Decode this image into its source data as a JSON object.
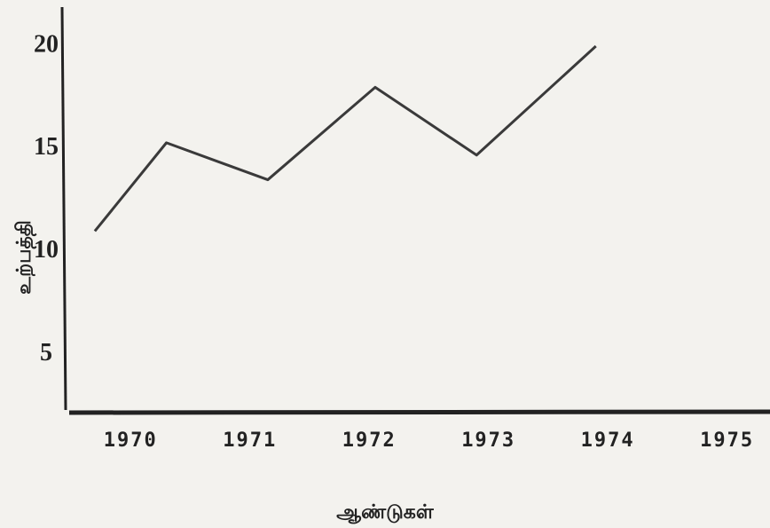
{
  "chart_data": {
    "type": "line",
    "x": [
      1969.7,
      1970.3,
      1971.15,
      1972.05,
      1972.9,
      1973.9
    ],
    "series": [
      {
        "name": null,
        "color": "#3a3a3a",
        "values": [
          11,
          15.3,
          13.5,
          18,
          14.7,
          20
        ]
      }
    ],
    "xlim": [
      1969.5,
      1975.3
    ],
    "xticks": [
      1970,
      1971,
      1972,
      1973,
      1974,
      1975
    ],
    "ylim": [
      2.3,
      21.9
    ],
    "yticks": [
      5,
      10,
      15,
      20
    ],
    "xlabel": "ஆண்டுகள்",
    "ylabel": "உற்பத்தி",
    "grid": false
  }
}
